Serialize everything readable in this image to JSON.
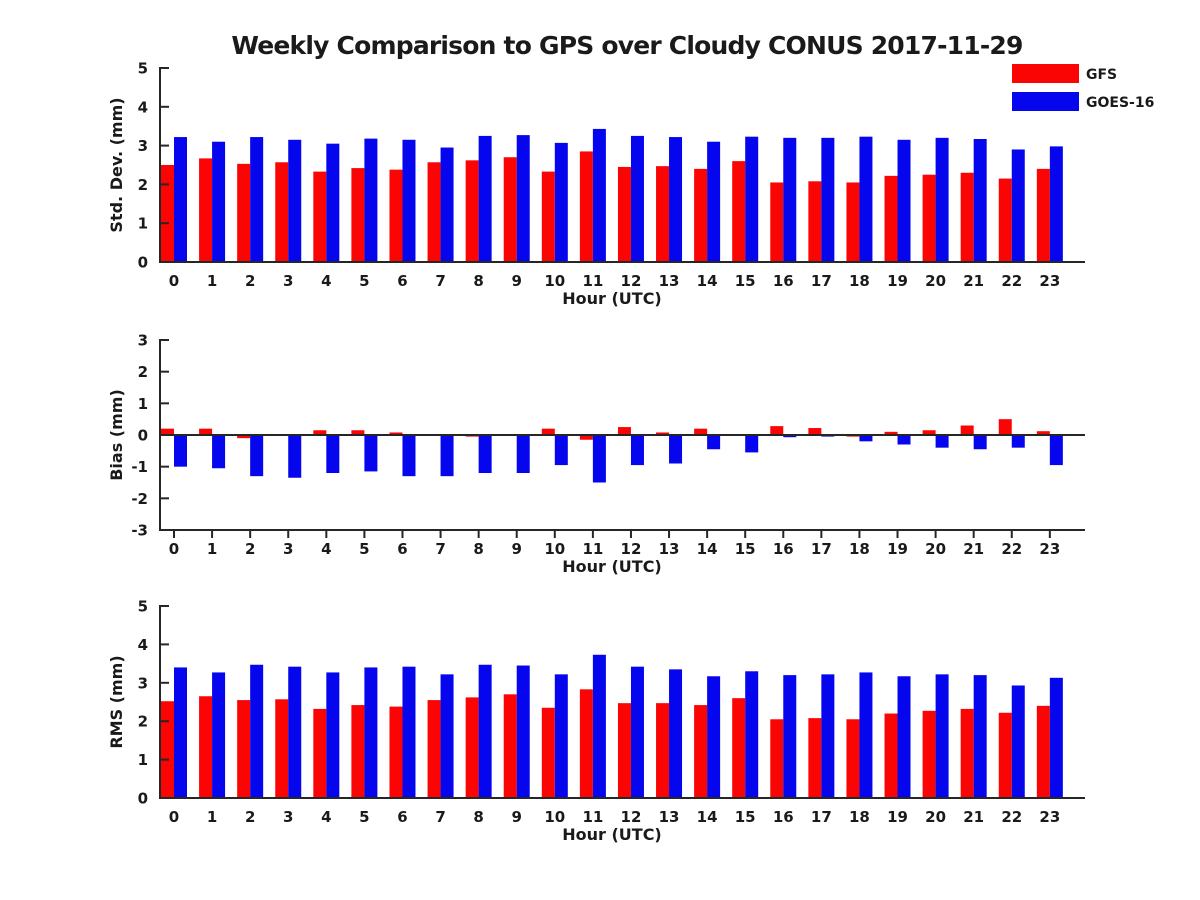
{
  "title": "Weekly Comparison to GPS over Cloudy CONUS 2017-11-29",
  "colors": {
    "gfs": "#fb0404",
    "goes16": "#0505ee",
    "axis": "#262626",
    "text": "#1a1a1a"
  },
  "legend": {
    "position": "top-right",
    "items": [
      {
        "label": "GFS",
        "color": "#fb0404"
      },
      {
        "label": "GOES-16",
        "color": "#0505ee"
      }
    ]
  },
  "chart_data": [
    {
      "type": "bar",
      "title": "Weekly Comparison to GPS over Cloudy CONUS 2017-11-29",
      "xlabel": "Hour (UTC)",
      "ylabel": "Std. Dev. (mm)",
      "categories": [
        "0",
        "1",
        "2",
        "3",
        "4",
        "5",
        "6",
        "7",
        "8",
        "9",
        "10",
        "11",
        "12",
        "13",
        "14",
        "15",
        "16",
        "17",
        "18",
        "19",
        "20",
        "21",
        "22",
        "23"
      ],
      "ylim": [
        0,
        5
      ],
      "yticks": [
        0,
        1,
        2,
        3,
        4,
        5
      ],
      "grid": false,
      "series": [
        {
          "name": "GFS",
          "color": "#fb0404",
          "values": [
            2.5,
            2.67,
            2.53,
            2.57,
            2.33,
            2.42,
            2.38,
            2.57,
            2.62,
            2.7,
            2.33,
            2.85,
            2.45,
            2.47,
            2.4,
            2.6,
            2.05,
            2.08,
            2.05,
            2.22,
            2.25,
            2.3,
            2.15,
            2.4
          ]
        },
        {
          "name": "GOES-16",
          "color": "#0505ee",
          "values": [
            3.22,
            3.1,
            3.22,
            3.15,
            3.05,
            3.18,
            3.15,
            2.95,
            3.25,
            3.27,
            3.07,
            3.43,
            3.25,
            3.22,
            3.1,
            3.23,
            3.2,
            3.2,
            3.23,
            3.15,
            3.2,
            3.17,
            2.9,
            2.98
          ]
        }
      ]
    },
    {
      "type": "bar",
      "title": "",
      "xlabel": "Hour (UTC)",
      "ylabel": "Bias (mm)",
      "categories": [
        "0",
        "1",
        "2",
        "3",
        "4",
        "5",
        "6",
        "7",
        "8",
        "9",
        "10",
        "11",
        "12",
        "13",
        "14",
        "15",
        "16",
        "17",
        "18",
        "19",
        "20",
        "21",
        "22",
        "23"
      ],
      "ylim": [
        -3,
        3
      ],
      "yticks": [
        3,
        2,
        1,
        0,
        -1,
        -2,
        -3
      ],
      "grid": false,
      "zero_line": true,
      "series": [
        {
          "name": "GFS",
          "color": "#fb0404",
          "values": [
            0.2,
            0.2,
            -0.1,
            0.0,
            0.15,
            0.15,
            0.08,
            0.03,
            -0.05,
            -0.03,
            0.2,
            -0.15,
            0.25,
            0.08,
            0.2,
            0.0,
            0.28,
            0.22,
            -0.05,
            0.1,
            0.15,
            0.3,
            0.5,
            0.12
          ]
        },
        {
          "name": "GOES-16",
          "color": "#0505ee",
          "values": [
            -1.0,
            -1.05,
            -1.3,
            -1.35,
            -1.2,
            -1.15,
            -1.3,
            -1.3,
            -1.2,
            -1.2,
            -0.95,
            -1.5,
            -0.95,
            -0.9,
            -0.45,
            -0.55,
            -0.07,
            -0.05,
            -0.2,
            -0.3,
            -0.4,
            -0.45,
            -0.4,
            -0.95
          ]
        }
      ]
    },
    {
      "type": "bar",
      "title": "",
      "xlabel": "Hour (UTC)",
      "ylabel": "RMS (mm)",
      "categories": [
        "0",
        "1",
        "2",
        "3",
        "4",
        "5",
        "6",
        "7",
        "8",
        "9",
        "10",
        "11",
        "12",
        "13",
        "14",
        "15",
        "16",
        "17",
        "18",
        "19",
        "20",
        "21",
        "22",
        "23"
      ],
      "ylim": [
        0,
        5
      ],
      "yticks": [
        0,
        1,
        2,
        3,
        4,
        5
      ],
      "grid": false,
      "series": [
        {
          "name": "GFS",
          "color": "#fb0404",
          "values": [
            2.52,
            2.65,
            2.55,
            2.57,
            2.32,
            2.42,
            2.38,
            2.55,
            2.62,
            2.7,
            2.35,
            2.83,
            2.47,
            2.47,
            2.42,
            2.6,
            2.05,
            2.08,
            2.05,
            2.2,
            2.27,
            2.32,
            2.22,
            2.4
          ]
        },
        {
          "name": "GOES-16",
          "color": "#0505ee",
          "values": [
            3.4,
            3.27,
            3.47,
            3.42,
            3.27,
            3.4,
            3.42,
            3.22,
            3.47,
            3.45,
            3.22,
            3.73,
            3.42,
            3.35,
            3.17,
            3.3,
            3.2,
            3.22,
            3.27,
            3.17,
            3.22,
            3.2,
            2.93,
            3.13
          ]
        }
      ]
    }
  ]
}
